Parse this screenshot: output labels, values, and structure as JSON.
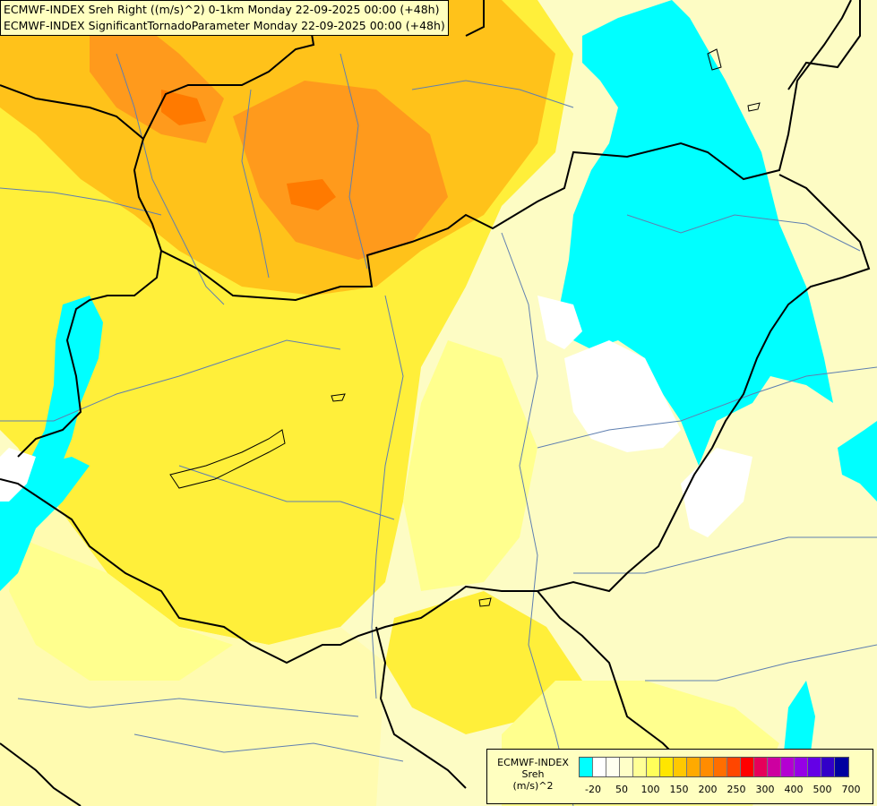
{
  "title": {
    "line1": "ECMWF-INDEX Sreh Right ((m/s)^2) 0-1km Monday 22-09-2025 00:00 (+48h)",
    "line2": "ECMWF-INDEX SignificantTornadoParameter Monday 22-09-2025 00:00 (+48h)"
  },
  "legend": {
    "title1": "ECMWF-INDEX",
    "title2": "Sreh",
    "title3": "(m/s)^2",
    "colors": [
      "#00ffff",
      "#ffffff",
      "#fffff0",
      "#ffffc8",
      "#ffff96",
      "#ffff5a",
      "#ffe600",
      "#ffc800",
      "#ffaa00",
      "#ff8c00",
      "#ff6e00",
      "#ff4600",
      "#ff0000",
      "#e6005a",
      "#cd00a0",
      "#b400d2",
      "#9600e6",
      "#6400e6",
      "#3200c8",
      "#0000a0"
    ],
    "ticks": [
      "-20",
      "50",
      "100",
      "150",
      "200",
      "250",
      "300",
      "400",
      "500",
      "700"
    ]
  },
  "colors": {
    "orange": "#ff9a1c",
    "light_orange": "#ffc21a",
    "yellow": "#ffe400",
    "light_yellow": "#ffff8e",
    "pale": "#fdfcc4",
    "cyan": "#00ffff",
    "white": "#ffffff",
    "border": "#000000",
    "river": "#5f7fb0"
  }
}
